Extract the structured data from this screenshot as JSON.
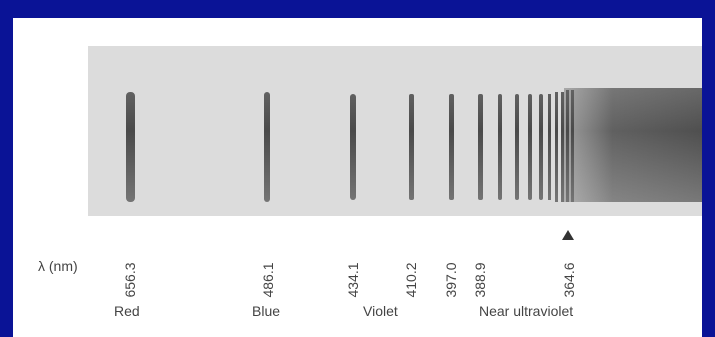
{
  "axis": {
    "label": "λ (nm)"
  },
  "wavelengths": [
    {
      "value": "656.3"
    },
    {
      "value": "486.1"
    },
    {
      "value": "434.1"
    },
    {
      "value": "410.2"
    },
    {
      "value": "397.0"
    },
    {
      "value": "388.9"
    },
    {
      "value": "364.6"
    }
  ],
  "regions": [
    {
      "label": "Red"
    },
    {
      "label": "Blue"
    },
    {
      "label": "Violet"
    },
    {
      "label": "Near ultraviolet"
    }
  ],
  "colors": {
    "frame": "#0a1396",
    "strip": "#dcdcdc",
    "line": "#4a4a4a"
  }
}
